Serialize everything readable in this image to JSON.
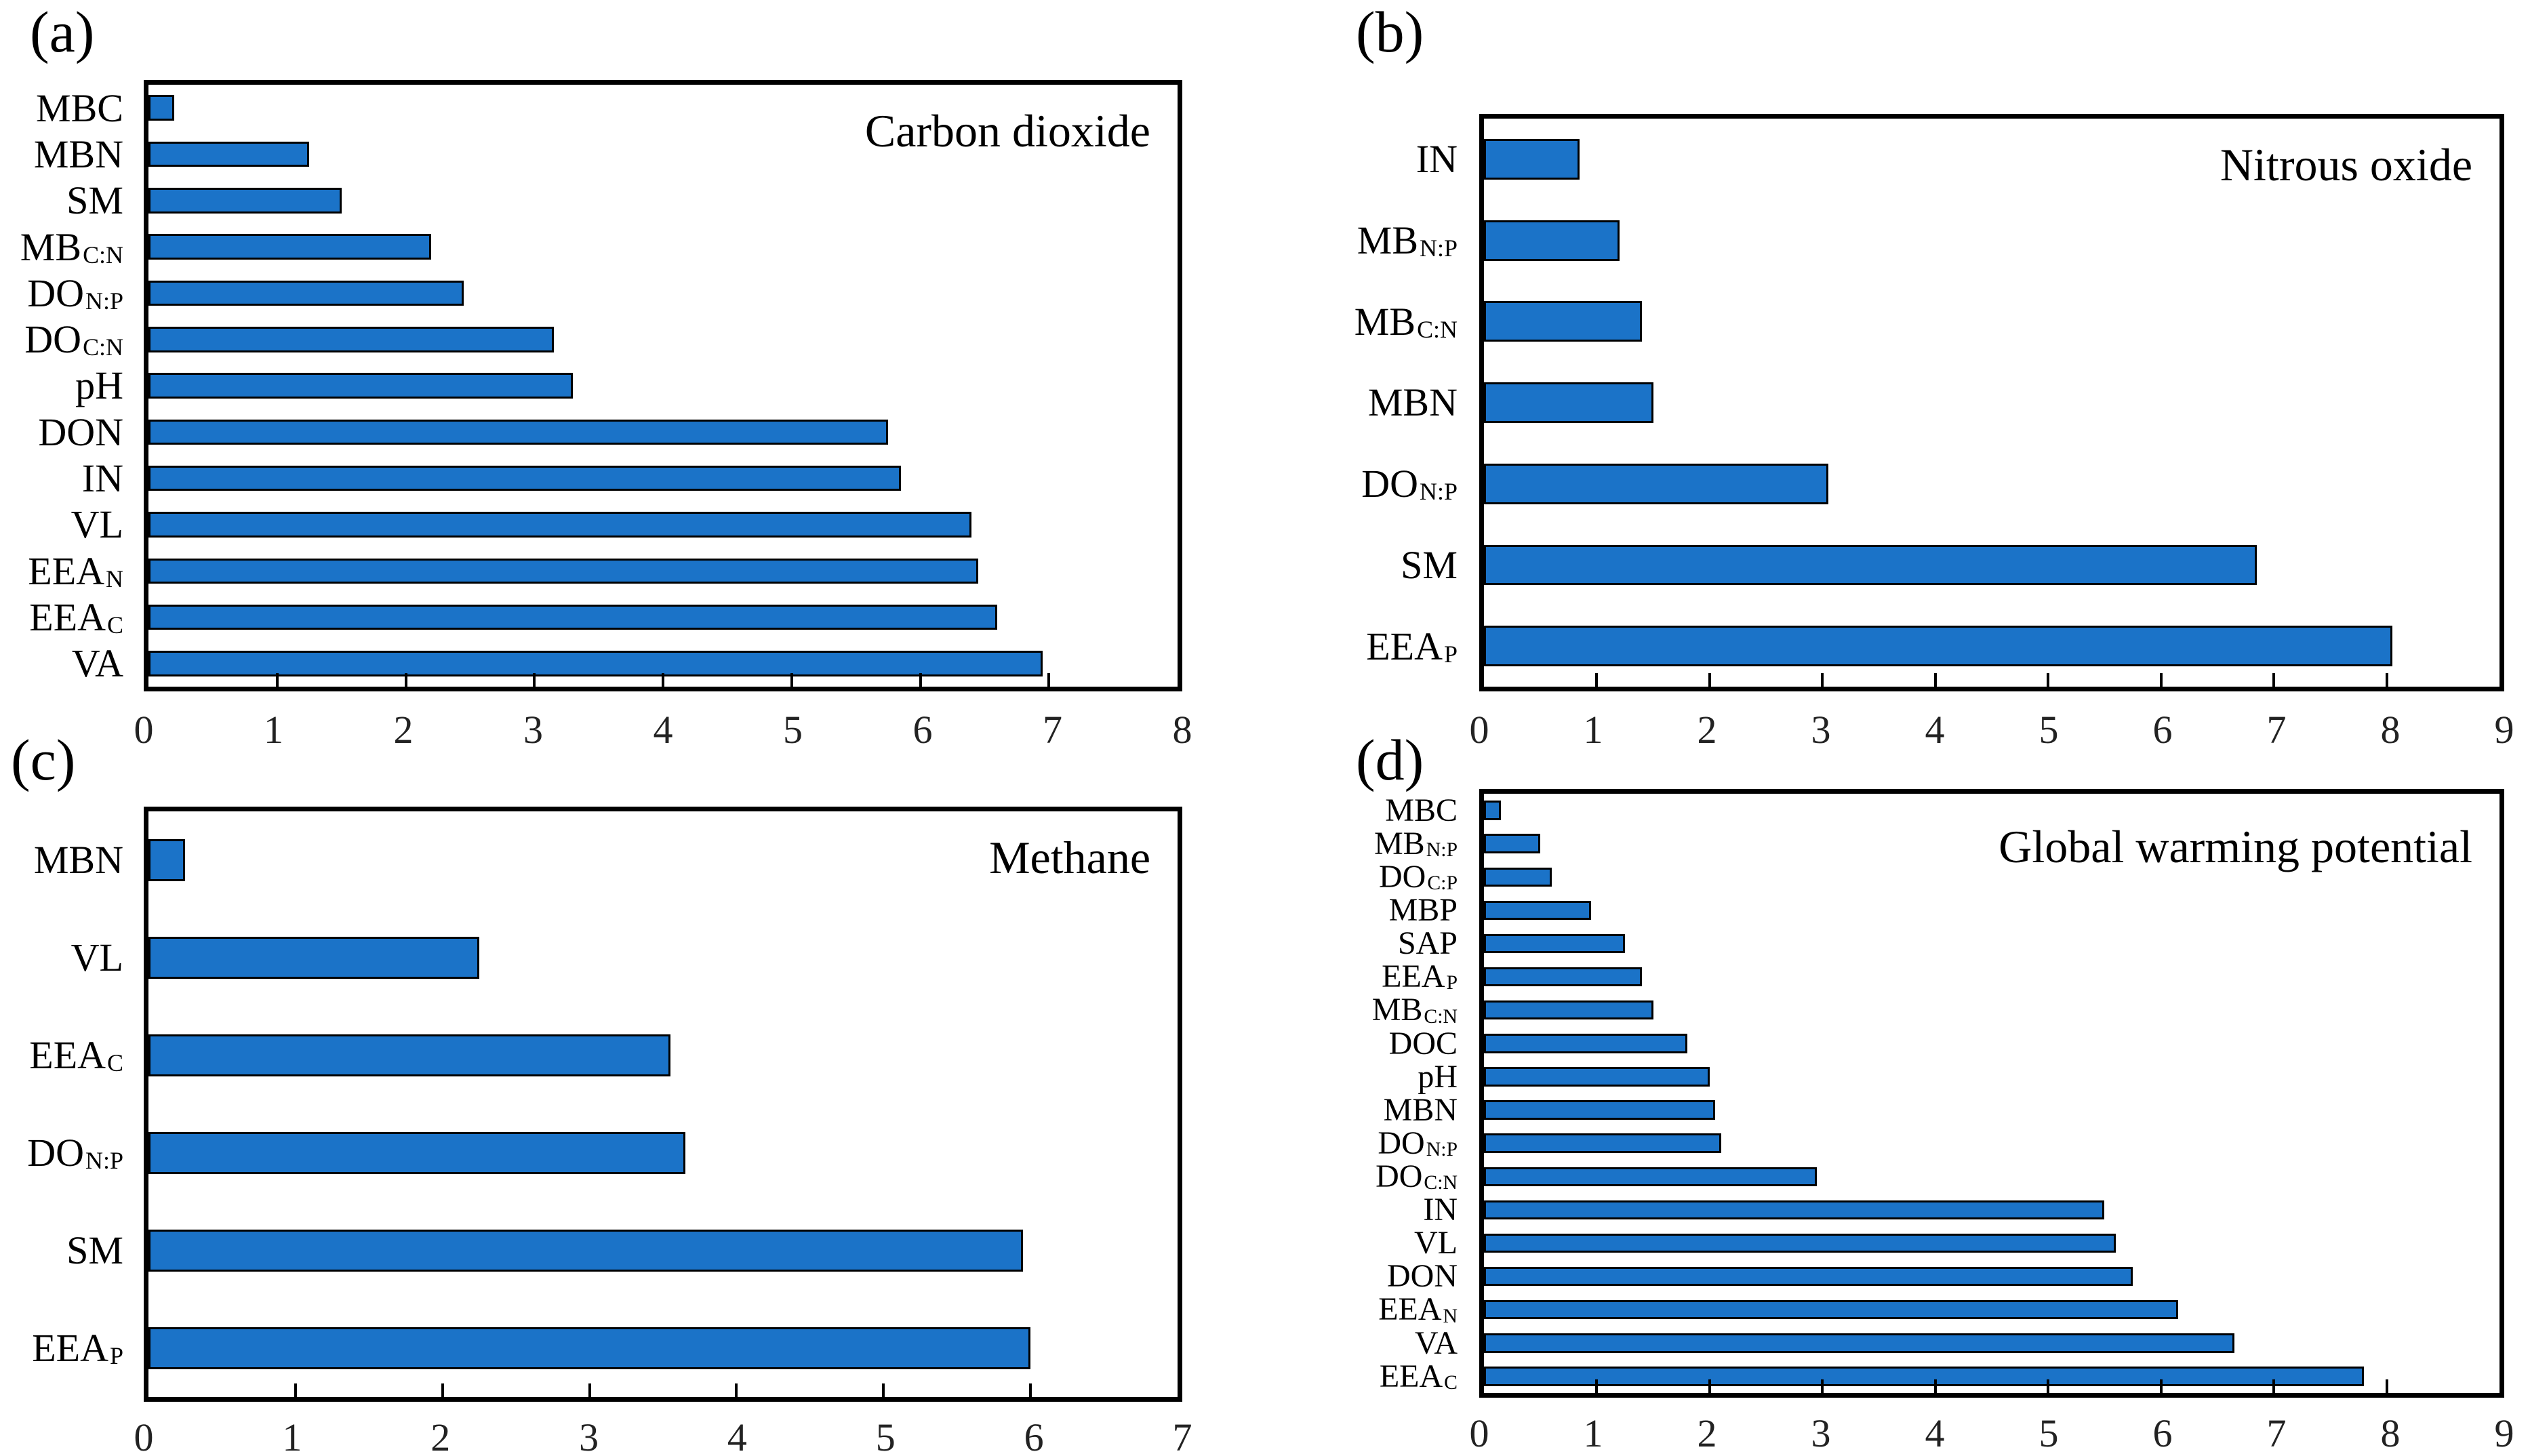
{
  "figure": {
    "background": "#ffffff",
    "colors": {
      "bar_fill": "#1b73c8",
      "bar_outline": "#000000",
      "frame": "#000000",
      "tick_label": "#222222",
      "text": "#000000"
    }
  },
  "chart_data": [
    {
      "type": "bar",
      "orientation": "horizontal",
      "panel_label": "(a)",
      "title": "Carbon dioxide",
      "xlim": [
        0,
        8
      ],
      "xticks": [
        0,
        1,
        2,
        3,
        4,
        5,
        6,
        7,
        8
      ],
      "grid": false,
      "bar_color": "#1b73c8",
      "bars": [
        {
          "label": "MBC",
          "sub": "",
          "value": 0.2
        },
        {
          "label": "MBN",
          "sub": "",
          "value": 1.25
        },
        {
          "label": "SM",
          "sub": "",
          "value": 1.5
        },
        {
          "label": "MB",
          "sub": "C:N",
          "value": 2.2
        },
        {
          "label": "DO",
          "sub": "N:P",
          "value": 2.45
        },
        {
          "label": "DO",
          "sub": "C:N",
          "value": 3.15
        },
        {
          "label": "pH",
          "sub": "",
          "value": 3.3
        },
        {
          "label": "DON",
          "sub": "",
          "value": 5.75
        },
        {
          "label": "IN",
          "sub": "",
          "value": 5.85
        },
        {
          "label": "VL",
          "sub": "",
          "value": 6.4
        },
        {
          "label": "EEA",
          "sub": "N",
          "value": 6.45
        },
        {
          "label": "EEA",
          "sub": "C",
          "value": 6.6
        },
        {
          "label": "VA",
          "sub": "",
          "value": 6.95
        }
      ]
    },
    {
      "type": "bar",
      "orientation": "horizontal",
      "panel_label": "(b)",
      "title": "Nitrous oxide",
      "xlim": [
        0,
        9
      ],
      "xticks": [
        0,
        1,
        2,
        3,
        4,
        5,
        6,
        7,
        8,
        9
      ],
      "grid": false,
      "bar_color": "#1b73c8",
      "bars": [
        {
          "label": "IN",
          "sub": "",
          "value": 0.85
        },
        {
          "label": "MB",
          "sub": "N:P",
          "value": 1.2
        },
        {
          "label": "MB",
          "sub": "C:N",
          "value": 1.4
        },
        {
          "label": "MBN",
          "sub": "",
          "value": 1.5
        },
        {
          "label": "DO",
          "sub": "N:P",
          "value": 3.05
        },
        {
          "label": "SM",
          "sub": "",
          "value": 6.85
        },
        {
          "label": "EEA",
          "sub": "P",
          "value": 8.05
        }
      ]
    },
    {
      "type": "bar",
      "orientation": "horizontal",
      "panel_label": "(c)",
      "title": "Methane",
      "xlim": [
        0,
        7
      ],
      "xticks": [
        0,
        1,
        2,
        3,
        4,
        5,
        6,
        7
      ],
      "grid": false,
      "bar_color": "#1b73c8",
      "bars": [
        {
          "label": "MBN",
          "sub": "",
          "value": 0.25
        },
        {
          "label": "VL",
          "sub": "",
          "value": 2.25
        },
        {
          "label": "EEA",
          "sub": "C",
          "value": 3.55
        },
        {
          "label": "DO",
          "sub": "N:P",
          "value": 3.65
        },
        {
          "label": "SM",
          "sub": "",
          "value": 5.95
        },
        {
          "label": "EEA",
          "sub": "P",
          "value": 6.0
        }
      ]
    },
    {
      "type": "bar",
      "orientation": "horizontal",
      "panel_label": "(d)",
      "title": "Global warming potential",
      "xlim": [
        0,
        9
      ],
      "xticks": [
        0,
        1,
        2,
        3,
        4,
        5,
        6,
        7,
        8,
        9
      ],
      "grid": false,
      "bar_color": "#1b73c8",
      "bars": [
        {
          "label": "MBC",
          "sub": "",
          "value": 0.15
        },
        {
          "label": "MB",
          "sub": "N:P",
          "value": 0.5
        },
        {
          "label": "DO",
          "sub": "C:P",
          "value": 0.6
        },
        {
          "label": "MBP",
          "sub": "",
          "value": 0.95
        },
        {
          "label": "SAP",
          "sub": "",
          "value": 1.25
        },
        {
          "label": "EEA",
          "sub": "P",
          "value": 1.4
        },
        {
          "label": "MB",
          "sub": "C:N",
          "value": 1.5
        },
        {
          "label": "DOC",
          "sub": "",
          "value": 1.8
        },
        {
          "label": "pH",
          "sub": "",
          "value": 2.0
        },
        {
          "label": "MBN",
          "sub": "",
          "value": 2.05
        },
        {
          "label": "DO",
          "sub": "N:P",
          "value": 2.1
        },
        {
          "label": "DO",
          "sub": "C:N",
          "value": 2.95
        },
        {
          "label": "IN",
          "sub": "",
          "value": 5.5
        },
        {
          "label": "VL",
          "sub": "",
          "value": 5.6
        },
        {
          "label": "DON",
          "sub": "",
          "value": 5.75
        },
        {
          "label": "EEA",
          "sub": "N",
          "value": 6.15
        },
        {
          "label": "VA",
          "sub": "",
          "value": 6.65
        },
        {
          "label": "EEA",
          "sub": "C",
          "value": 7.8
        }
      ]
    }
  ]
}
